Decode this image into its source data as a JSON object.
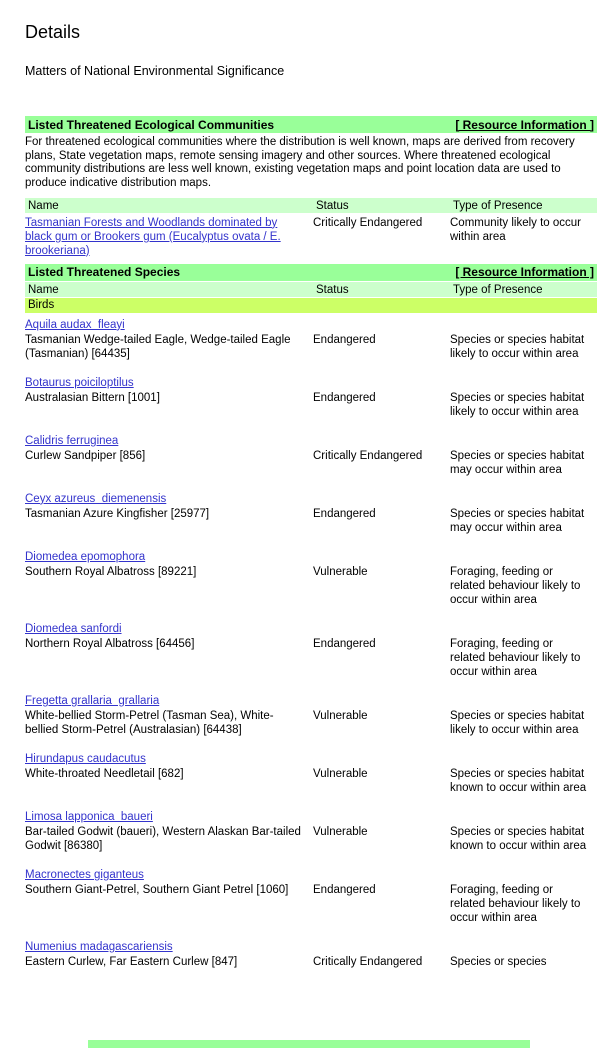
{
  "page": {
    "title": "Details",
    "subtitle": "Matters of National Environmental Significance"
  },
  "colors": {
    "section_header_bg": "#99ff99",
    "column_header_bg": "#ccffcc",
    "group_row_bg": "#ccff66",
    "link_color": "#3333cc"
  },
  "resource_link_label": "[ Resource Information ]",
  "columns": {
    "name": "Name",
    "status": "Status",
    "presence": "Type of Presence"
  },
  "communities_section": {
    "title": "Listed Threatened Ecological Communities",
    "description": "For threatened ecological communities where the distribution is well known, maps are derived from recovery plans, State vegetation maps, remote sensing imagery and other sources. Where threatened ecological community distributions are less well known, existing vegetation maps and point location data are used to produce indicative distribution maps.",
    "rows": [
      {
        "name": "Tasmanian Forests and Woodlands dominated by black gum or Brookers gum (Eucalyptus ovata / E. brookeriana)",
        "status": "Critically Endangered",
        "presence": "Community likely to occur within area"
      }
    ]
  },
  "species_section": {
    "title": "Listed Threatened Species",
    "group": "Birds",
    "rows": [
      {
        "scientific": "Aquila audax  fleayi",
        "common": "Tasmanian Wedge-tailed Eagle, Wedge-tailed Eagle (Tasmanian) [64435]",
        "status": "Endangered",
        "presence": "Species or species habitat likely to occur within area"
      },
      {
        "scientific": "Botaurus poiciloptilus",
        "common": "Australasian Bittern [1001]",
        "status": "Endangered",
        "presence": "Species or species habitat likely to occur within area"
      },
      {
        "scientific": "Calidris ferruginea",
        "common": "Curlew Sandpiper [856]",
        "status": "Critically Endangered",
        "presence": "Species or species habitat may occur within area"
      },
      {
        "scientific": "Ceyx azureus  diemenensis",
        "common": "Tasmanian Azure Kingfisher [25977]",
        "status": "Endangered",
        "presence": "Species or species habitat may occur within area"
      },
      {
        "scientific": "Diomedea epomophora",
        "common": "Southern Royal Albatross [89221]",
        "status": "Vulnerable",
        "presence": "Foraging, feeding or related behaviour likely to occur within area"
      },
      {
        "scientific": "Diomedea sanfordi",
        "common": "Northern Royal Albatross [64456]",
        "status": "Endangered",
        "presence": "Foraging, feeding or related behaviour likely to occur within area"
      },
      {
        "scientific": "Fregetta grallaria  grallaria",
        "common": "White-bellied Storm-Petrel (Tasman Sea), White-bellied Storm-Petrel (Australasian) [64438]",
        "status": "Vulnerable",
        "presence": "Species or species habitat likely to occur within area"
      },
      {
        "scientific": "Hirundapus caudacutus",
        "common": "White-throated Needletail [682]",
        "status": "Vulnerable",
        "presence": "Species or species habitat known to occur within area"
      },
      {
        "scientific": "Limosa lapponica  baueri",
        "common": "Bar-tailed Godwit (baueri), Western Alaskan Bar-tailed Godwit [86380]",
        "status": "Vulnerable",
        "presence": "Species or species habitat known to occur within area"
      },
      {
        "scientific": "Macronectes giganteus",
        "common": "Southern Giant-Petrel, Southern Giant Petrel [1060]",
        "status": "Endangered",
        "presence": "Foraging, feeding or related behaviour likely to occur within area"
      },
      {
        "scientific": "Numenius madagascariensis",
        "common": "Eastern Curlew, Far Eastern Curlew [847]",
        "status": "Critically Endangered",
        "presence": "Species or species"
      }
    ]
  }
}
